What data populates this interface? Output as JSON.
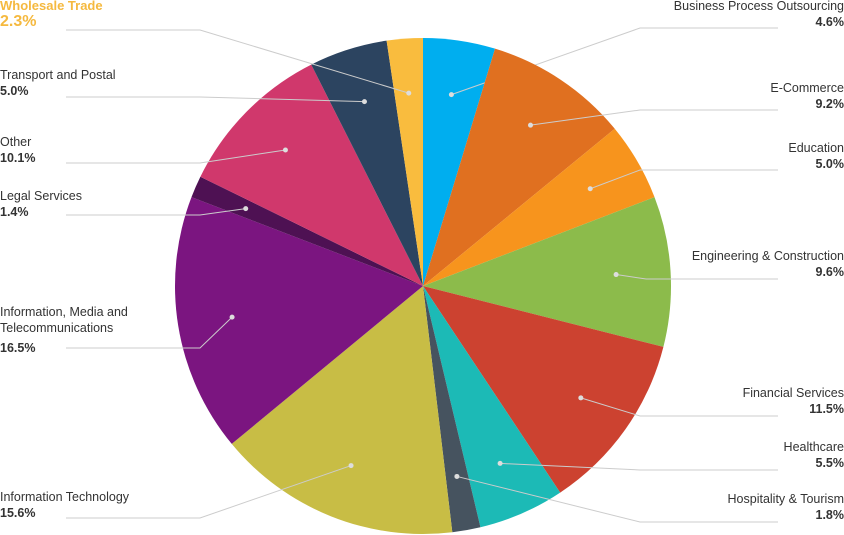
{
  "chart_data": {
    "type": "pie",
    "start_angle_deg": 0,
    "highlighted": "Wholesale Trade",
    "slices": [
      {
        "label": "Business Process Outsourcing",
        "value": 4.6,
        "value_label": "4.6%",
        "color": "#00aeef",
        "side": "right"
      },
      {
        "label": "E-Commerce",
        "value": 9.2,
        "value_label": "9.2%",
        "color": "#e07020",
        "side": "right"
      },
      {
        "label": "Education",
        "value": 5.0,
        "value_label": "5.0%",
        "color": "#f7941d",
        "side": "right"
      },
      {
        "label": "Engineering & Construction",
        "value": 9.6,
        "value_label": "9.6%",
        "color": "#8cbb4b",
        "side": "right"
      },
      {
        "label": "Financial Services",
        "value": 11.5,
        "value_label": "11.5%",
        "color": "#cc4230",
        "side": "right"
      },
      {
        "label": "Healthcare",
        "value": 5.5,
        "value_label": "5.5%",
        "color": "#1cbab6",
        "side": "right"
      },
      {
        "label": "Hospitality & Tourism",
        "value": 1.8,
        "value_label": "1.8%",
        "color": "#46535f",
        "side": "right"
      },
      {
        "label": "Information Technology",
        "value": 15.6,
        "value_label": "15.6%",
        "color": "#c8bd45",
        "side": "left"
      },
      {
        "label": "Information, Media and Telecommunications",
        "value": 16.5,
        "value_label": "16.5%",
        "color": "#7b1580",
        "side": "left"
      },
      {
        "label": "Legal Services",
        "value": 1.4,
        "value_label": "1.4%",
        "color": "#4e1153",
        "side": "left"
      },
      {
        "label": "Other",
        "value": 10.1,
        "value_label": "10.1%",
        "color": "#d0386c",
        "side": "left"
      },
      {
        "label": "Transport and Postal",
        "value": 5.0,
        "value_label": "5.0%",
        "color": "#2c4460",
        "side": "left"
      },
      {
        "label": "Wholesale Trade",
        "value": 2.3,
        "value_label": "2.3%",
        "color": "#f9bc3e",
        "side": "left"
      }
    ]
  }
}
